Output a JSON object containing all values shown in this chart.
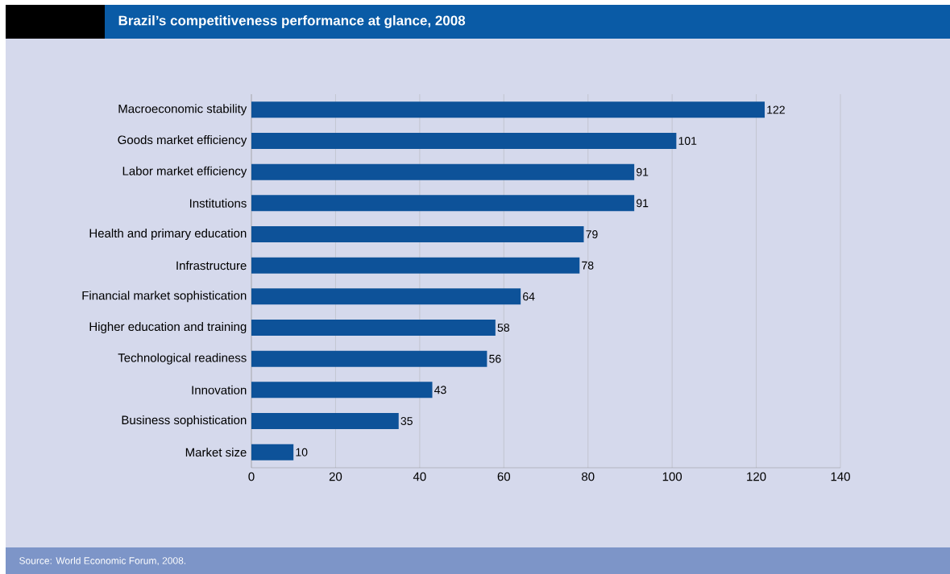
{
  "chart_data": {
    "type": "bar",
    "orientation": "horizontal",
    "title": "Brazil’s competitiveness performance at glance, 2008",
    "categories": [
      "Macroeconomic stability",
      "Goods market efficiency",
      "Labor market efficiency",
      "Institutions",
      "Health and primary education",
      "Infrastructure",
      "Financial market sophistication",
      "Higher education and training",
      "Technological readiness",
      "Innovation",
      "Business sophistication",
      "Market size"
    ],
    "values": [
      122,
      101,
      91,
      91,
      79,
      78,
      64,
      58,
      56,
      43,
      35,
      10
    ],
    "color": "#0d5299",
    "xlim": [
      0,
      140
    ],
    "xticks": [
      0,
      20,
      40,
      60,
      80,
      100,
      120,
      140
    ],
    "grid": "x",
    "data_labels": true,
    "annotations": [
      "Source: World Economic Forum, 2008."
    ]
  }
}
